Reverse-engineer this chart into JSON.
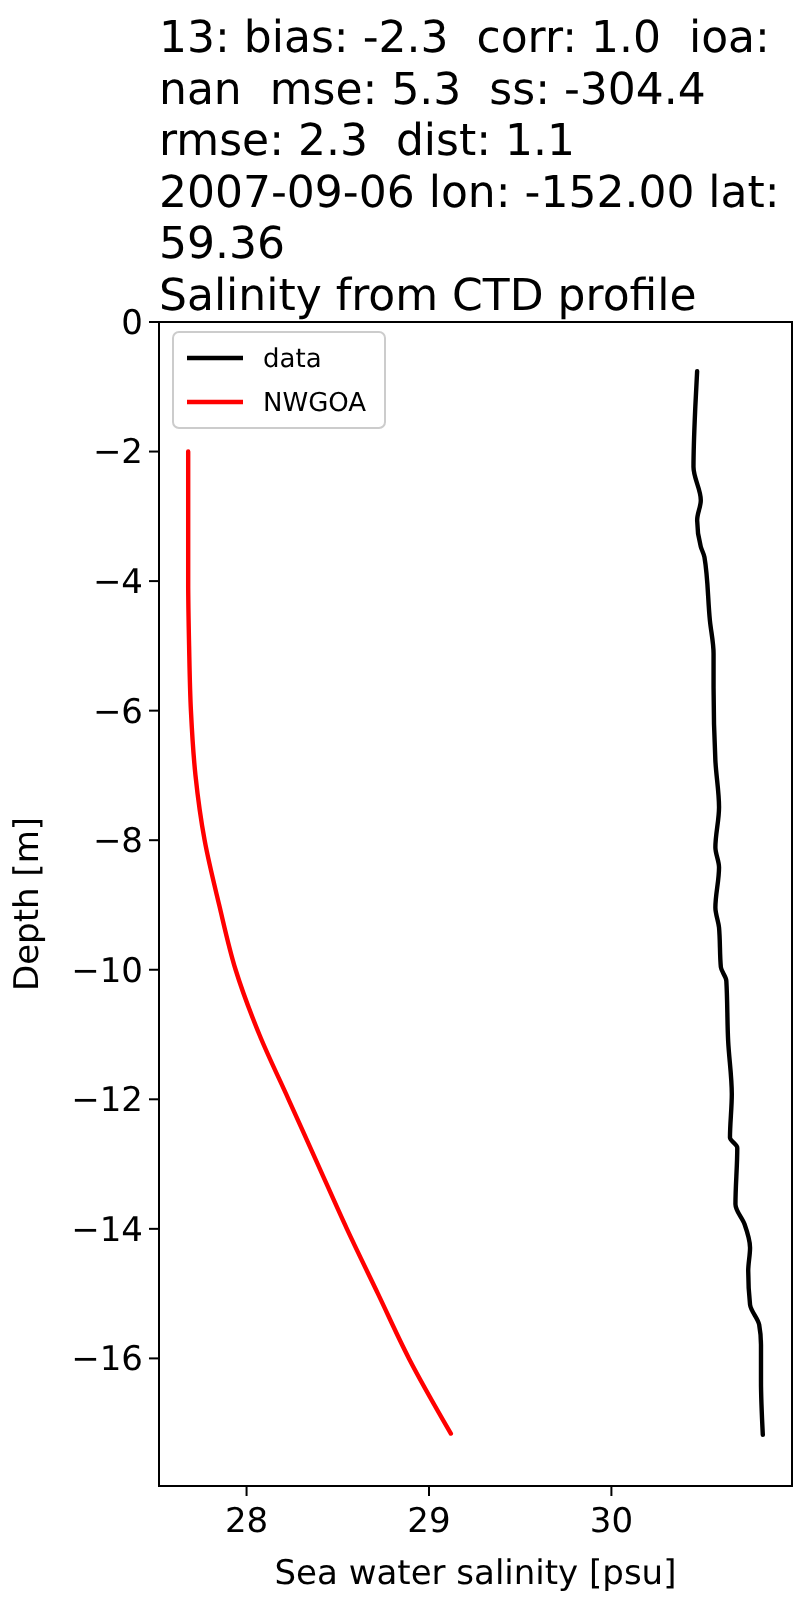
{
  "chart_data": {
    "type": "line",
    "title": "13: bias: -2.3  corr: 1.0  ioa:\nnan  mse: 5.3  ss: -304.4\nrmse: 2.3  dist: 1.1\n2007-09-06 lon: -152.00 lat:\n59.36\nSalinity from CTD profile",
    "xlabel": "Sea water salinity [psu]",
    "ylabel": "Depth [m]",
    "xlim": [
      27.52,
      30.99
    ],
    "xticks": [
      28,
      29,
      30
    ],
    "ylim": [
      -17.97,
      0
    ],
    "yticks": [
      0,
      {
        "value": -2,
        "label": "−2"
      },
      {
        "value": -4,
        "label": "−4"
      },
      {
        "value": -6,
        "label": "−6"
      },
      {
        "value": -8,
        "label": "−8"
      },
      {
        "value": -10,
        "label": "−10"
      },
      {
        "value": -12,
        "label": "−12"
      },
      {
        "value": -14,
        "label": "−14"
      },
      {
        "value": -16,
        "label": "−16"
      }
    ],
    "series": [
      {
        "name": "data",
        "color": "#000000",
        "x": [
          30.47,
          30.46,
          30.45,
          30.49,
          30.47,
          30.49,
          30.51,
          30.54,
          30.56,
          30.56,
          30.57,
          30.59,
          30.57,
          30.59,
          30.57,
          30.59,
          30.6,
          30.63,
          30.64,
          30.66,
          30.65,
          30.69,
          30.68,
          30.73,
          30.76,
          30.75,
          30.76,
          30.81,
          30.82,
          30.82,
          30.83
        ],
        "values": [
          -0.76,
          -1.31,
          -2.24,
          -2.75,
          -3.06,
          -3.47,
          -3.63,
          -4.61,
          -5.12,
          -5.64,
          -6.77,
          -7.49,
          -8.11,
          -8.42,
          -9.04,
          -9.35,
          -9.96,
          -10.17,
          -11.1,
          -11.92,
          -12.59,
          -12.75,
          -13.62,
          -13.93,
          -14.29,
          -14.65,
          -15.17,
          -15.48,
          -15.79,
          -16.35,
          -17.18
        ]
      },
      {
        "name": "NWGOA",
        "color": "#ff0000",
        "x": [
          27.68,
          27.68,
          27.685,
          27.695,
          27.72,
          27.77,
          27.85,
          27.94,
          28.07,
          28.23,
          28.39,
          28.55,
          28.72,
          28.89,
          29.12
        ],
        "values": [
          -2,
          -4,
          -5,
          -6,
          -7,
          -8,
          -9,
          -10,
          -11,
          -12,
          -13,
          -14,
          -15,
          -16,
          -17.16
        ]
      }
    ],
    "legend": "top left",
    "grid": false,
    "line_style": "solid"
  }
}
